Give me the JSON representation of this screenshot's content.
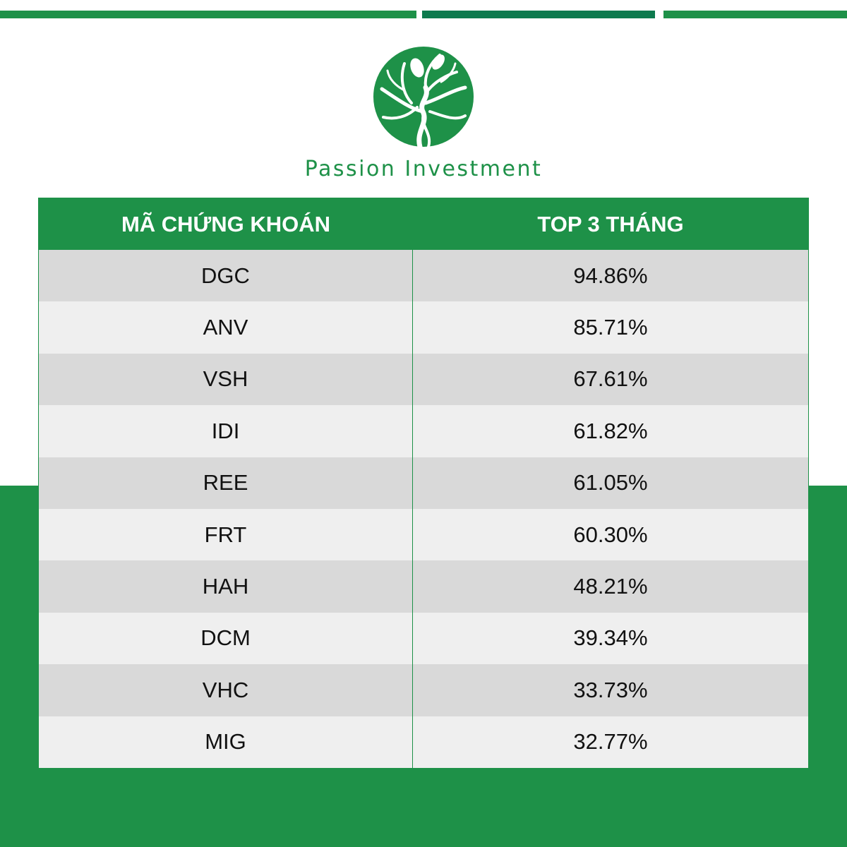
{
  "brand": {
    "name": "Passion Investment",
    "color": "#1e9148"
  },
  "table": {
    "headers": [
      "MÃ CHỨNG KHOÁN",
      "TOP 3 THÁNG"
    ],
    "rows": [
      {
        "code": "DGC",
        "value": "94.86%"
      },
      {
        "code": "ANV",
        "value": "85.71%"
      },
      {
        "code": "VSH",
        "value": "67.61%"
      },
      {
        "code": "IDI",
        "value": "61.82%"
      },
      {
        "code": "REE",
        "value": "61.05%"
      },
      {
        "code": "FRT",
        "value": "60.30%"
      },
      {
        "code": "HAH",
        "value": "48.21%"
      },
      {
        "code": "DCM",
        "value": "39.34%"
      },
      {
        "code": "VHC",
        "value": "33.73%"
      },
      {
        "code": "MIG",
        "value": "32.77%"
      }
    ]
  },
  "icons": {
    "logo": "tree-logo-icon"
  }
}
